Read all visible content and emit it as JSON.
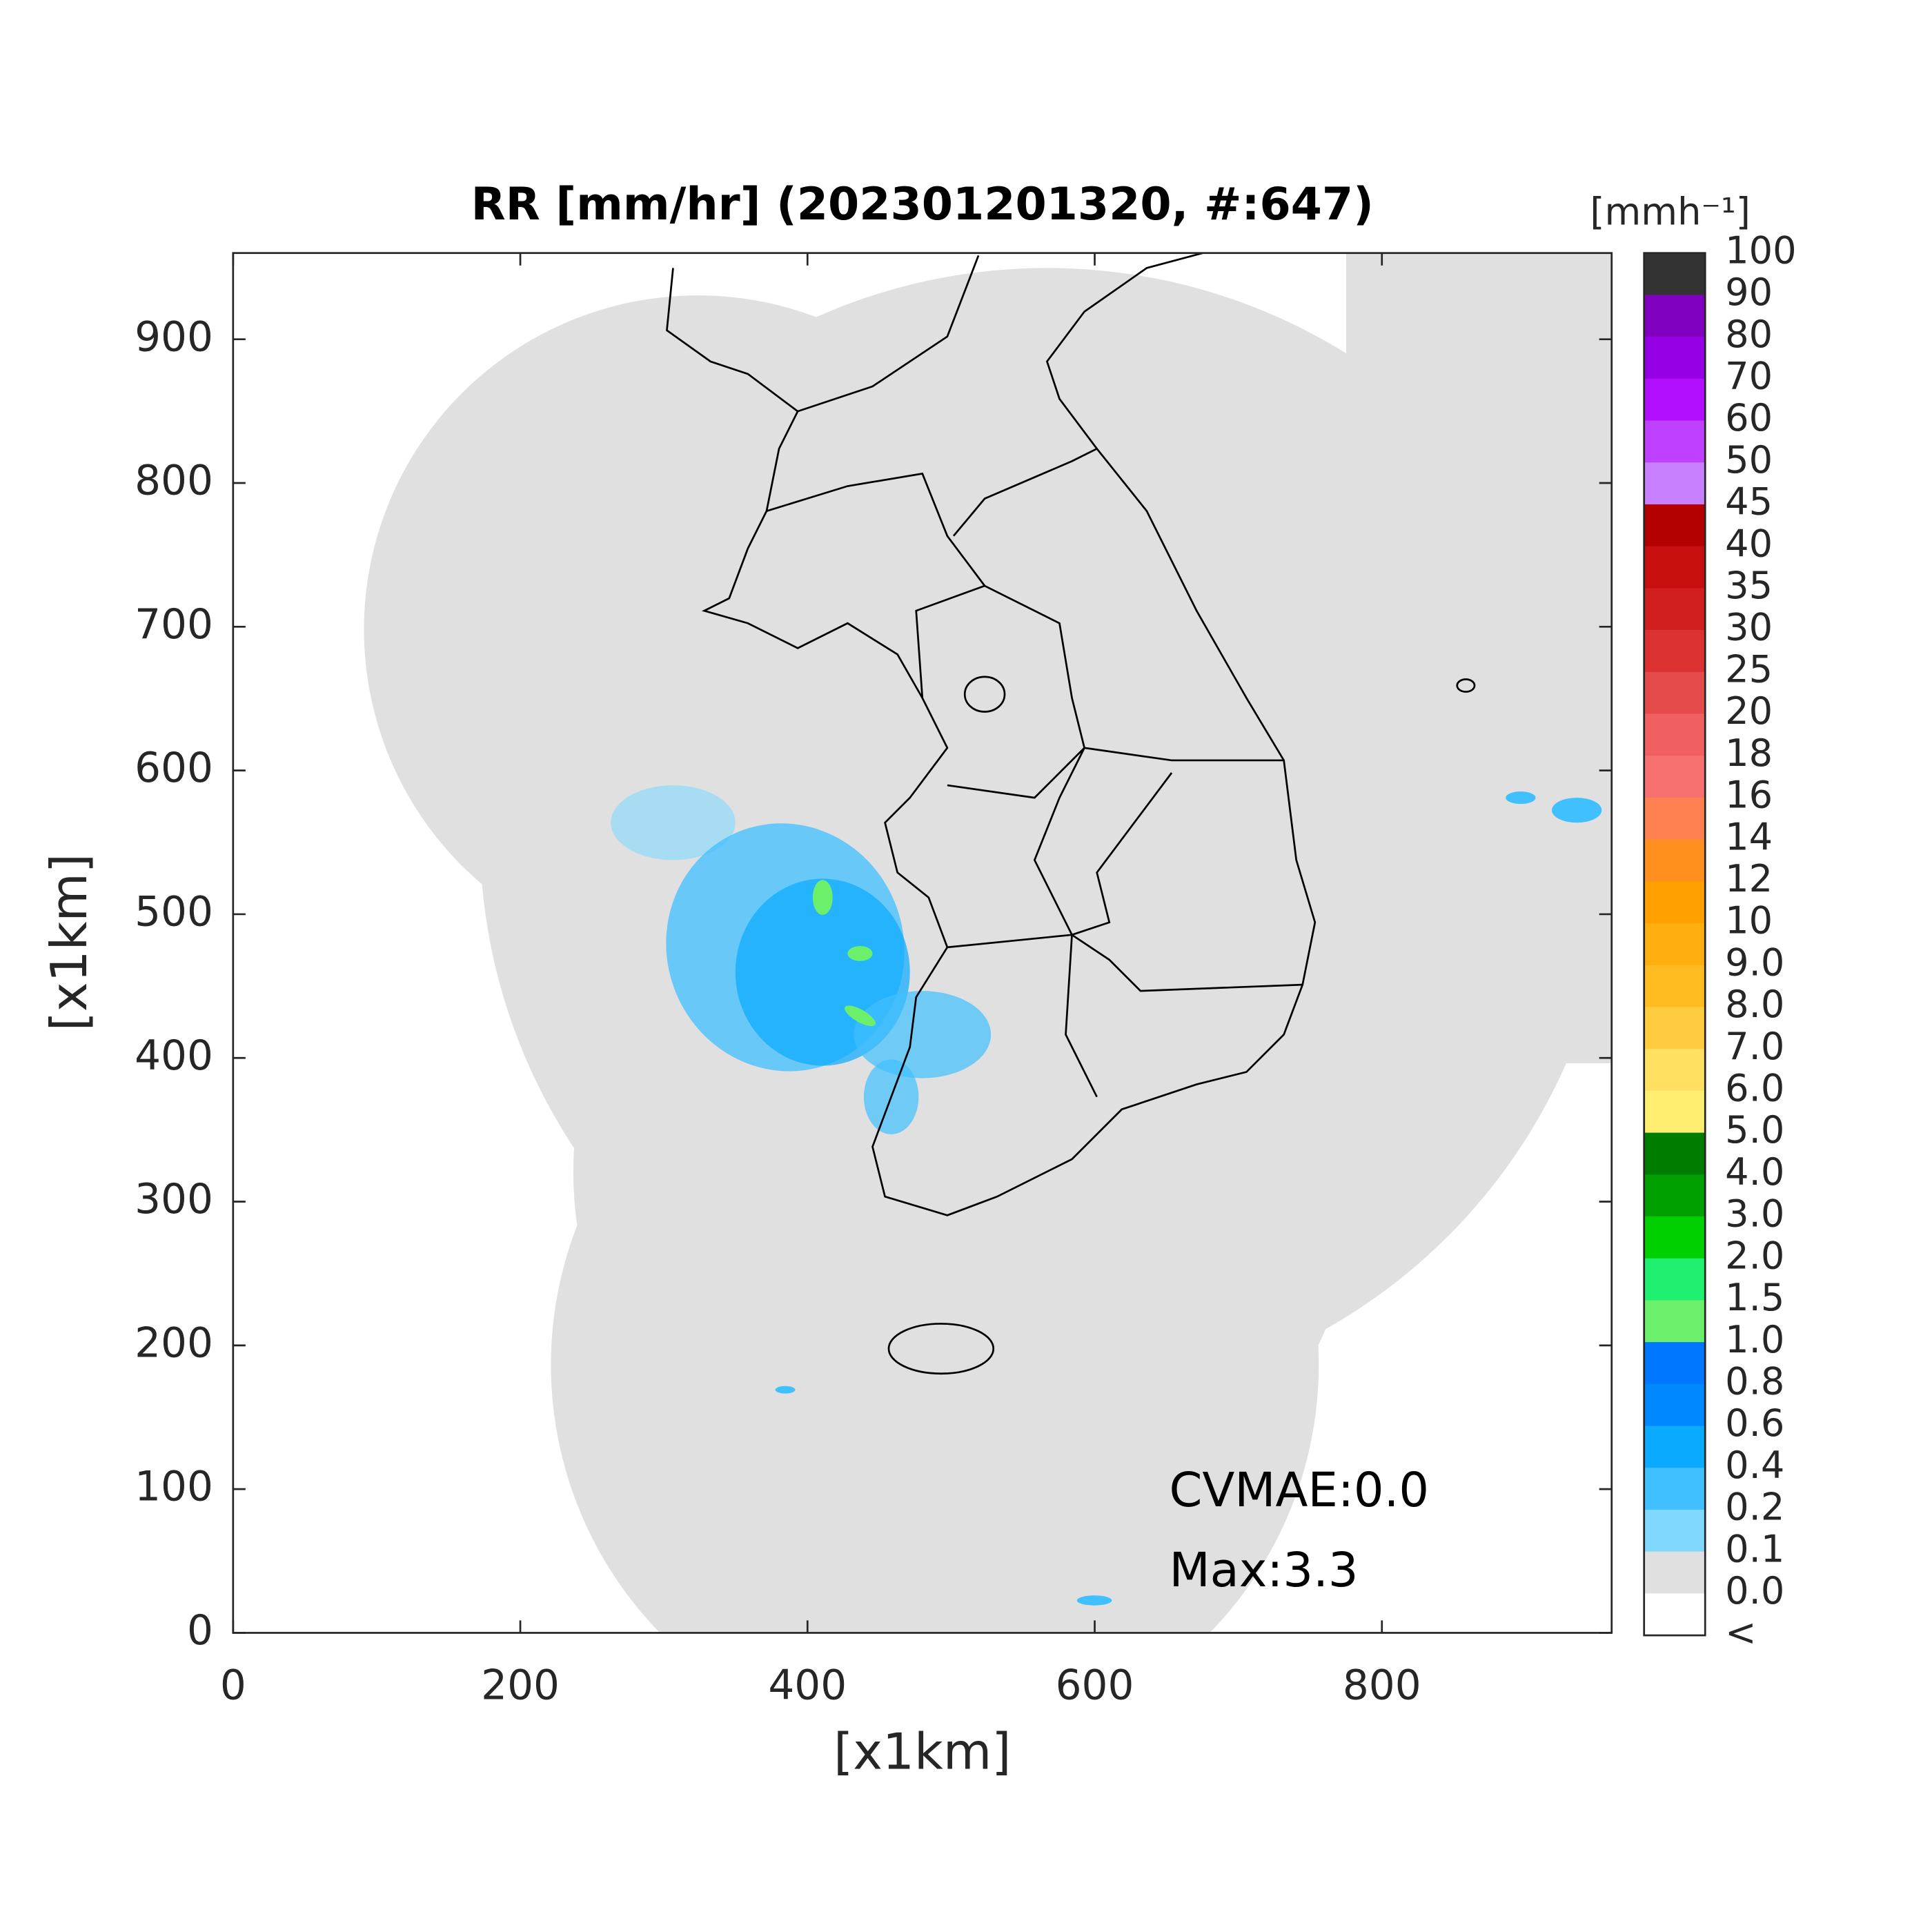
{
  "map": {
    "title": "RR [mm/hr] (202301201320, #:647)",
    "x_label": "[x1km]",
    "y_label": "[x1km]",
    "xlim": [
      0,
      960
    ],
    "ylim": [
      0,
      960
    ],
    "xticks": [
      0,
      200,
      400,
      600,
      800
    ],
    "yticks": [
      0,
      100,
      200,
      300,
      400,
      500,
      600,
      700,
      800,
      900
    ],
    "annotations": [
      "CVMAE:0.0",
      "Max:3.3"
    ],
    "colorbar": {
      "unit": "[mmh⁻¹]",
      "labels": [
        "100",
        "90",
        "80",
        "70",
        "60",
        "50",
        "45",
        "40",
        "35",
        "30",
        "25",
        "20",
        "18",
        "16",
        "14",
        "12",
        "10",
        "9.0",
        "8.0",
        "7.0",
        "6.0",
        "5.0",
        "4.0",
        "3.0",
        "2.0",
        "1.5",
        "1.0",
        "0.8",
        "0.6",
        "0.4",
        "0.2",
        "0.1",
        "0.0",
        "<"
      ],
      "colors": [
        "#333333",
        "#7f00bf",
        "#9600e6",
        "#b20fff",
        "#c040ff",
        "#c880ff",
        "#b40000",
        "#c80f0f",
        "#d21e1e",
        "#dc3232",
        "#e64b4b",
        "#f06060",
        "#f87070",
        "#ff8050",
        "#ff9020",
        "#ffa000",
        "#ffae10",
        "#ffbb20",
        "#ffcc40",
        "#ffe060",
        "#ffee70",
        "#007d00",
        "#00a000",
        "#00d000",
        "#20f070",
        "#6cf06c",
        "#0077ff",
        "#0088ff",
        "#0aaaff",
        "#40c0ff",
        "#80d8ff",
        "#e0e0e0",
        "#ffffff"
      ]
    }
  }
}
